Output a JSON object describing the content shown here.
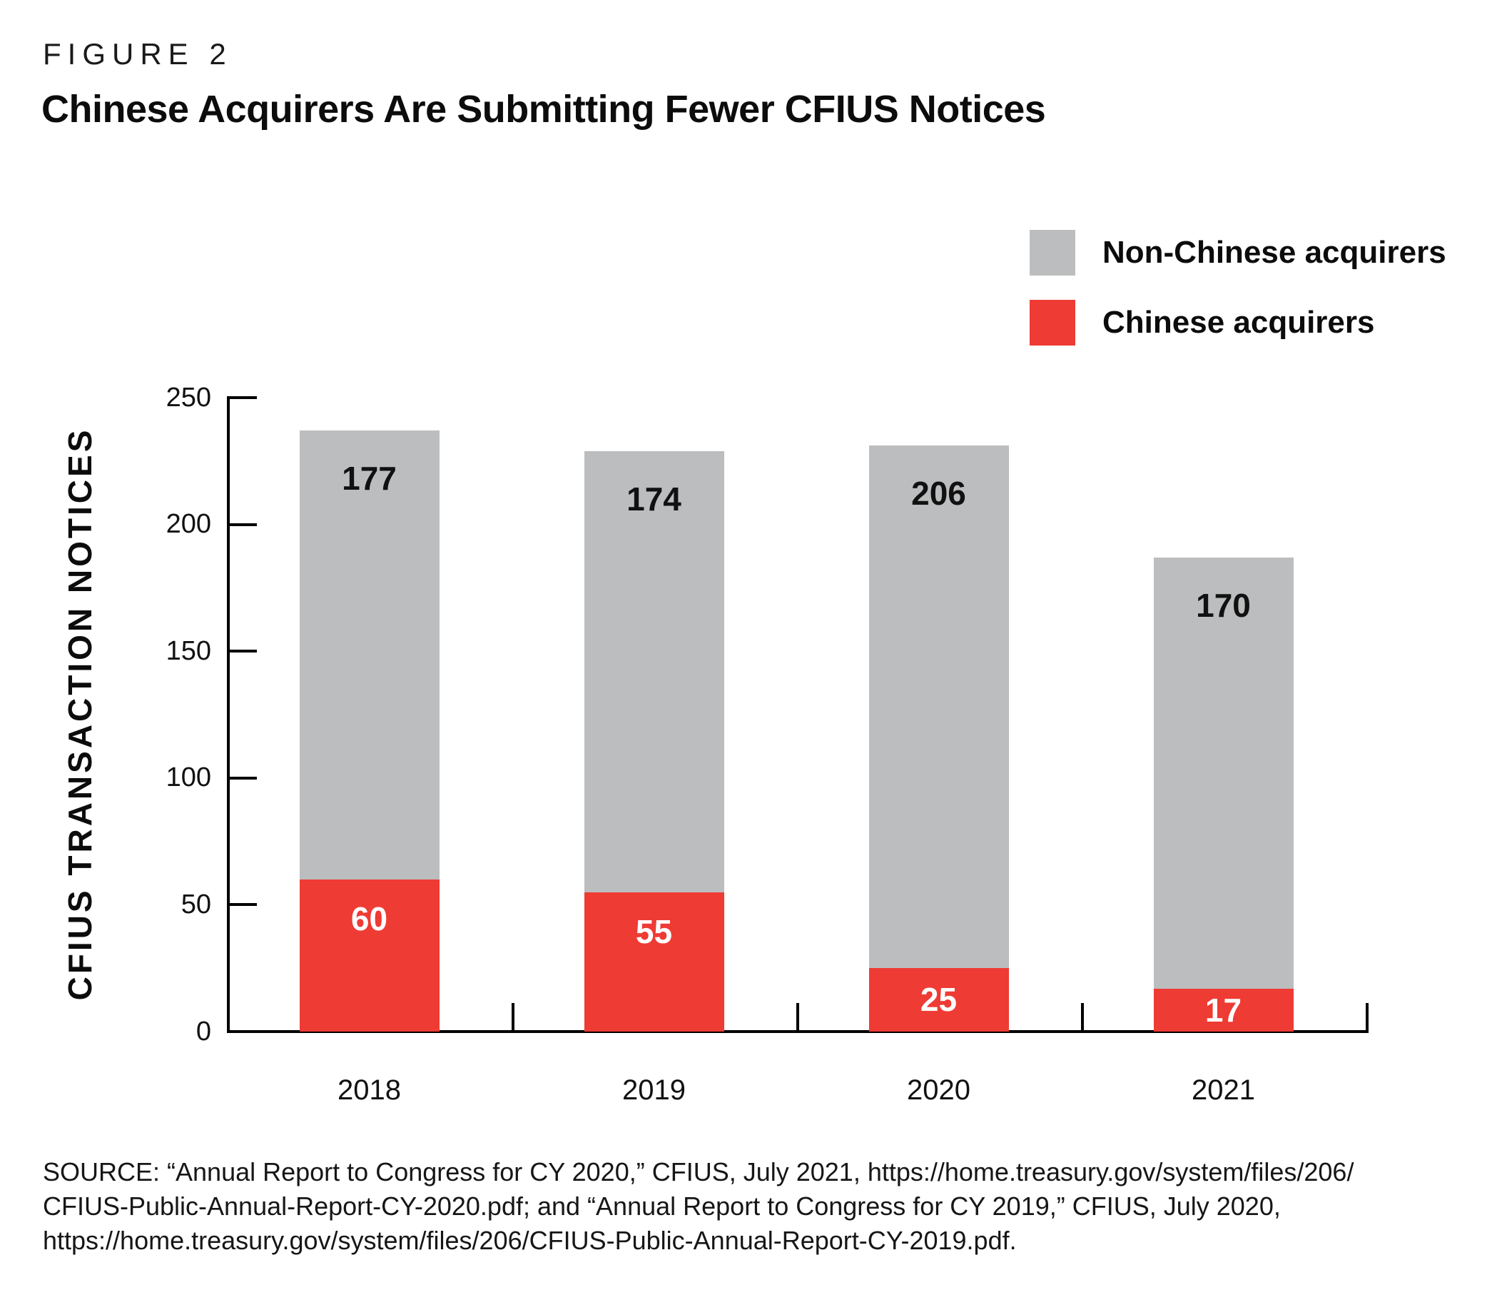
{
  "figure": {
    "label": "FIGURE 2",
    "title": "Chinese Acquirers Are Submitting Fewer CFIUS Notices"
  },
  "legend": [
    {
      "label": "Non-Chinese acquirers",
      "color": "#bcbdbe"
    },
    {
      "label": "Chinese acquirers",
      "color": "#ee3b34"
    }
  ],
  "chart_data": {
    "type": "bar",
    "stacked": true,
    "title": "Chinese Acquirers Are Submitting Fewer CFIUS Notices",
    "categories": [
      "2018",
      "2019",
      "2020",
      "2021"
    ],
    "series": [
      {
        "name": "Chinese acquirers",
        "color": "#ee3b34",
        "label_color": "#ffffff",
        "values": [
          60,
          55,
          25,
          17
        ]
      },
      {
        "name": "Non-Chinese acquirers",
        "color": "#bcbdbe",
        "label_color": "#111111",
        "values": [
          177,
          174,
          206,
          170
        ]
      }
    ],
    "totals": [
      237,
      229,
      231,
      187
    ],
    "xlabel": "",
    "ylabel": "CFIUS TRANSACTION NOTICES",
    "ylim": [
      0,
      250
    ],
    "yticks": [
      0,
      50,
      100,
      150,
      200,
      250
    ],
    "grid": false,
    "legend_position": "top-right"
  },
  "source": {
    "text": "SOURCE: “Annual Report to Congress for CY 2020,” CFIUS, July 2021, https://home.treasury.gov/system/files/206/\nCFIUS-Public-Annual-Report-CY-2020.pdf; and “Annual Report to Congress for CY 2019,” CFIUS, July 2020,\nhttps://home.treasury.gov/system/files/206/CFIUS-Public-Annual-Report-CY-2019.pdf."
  }
}
